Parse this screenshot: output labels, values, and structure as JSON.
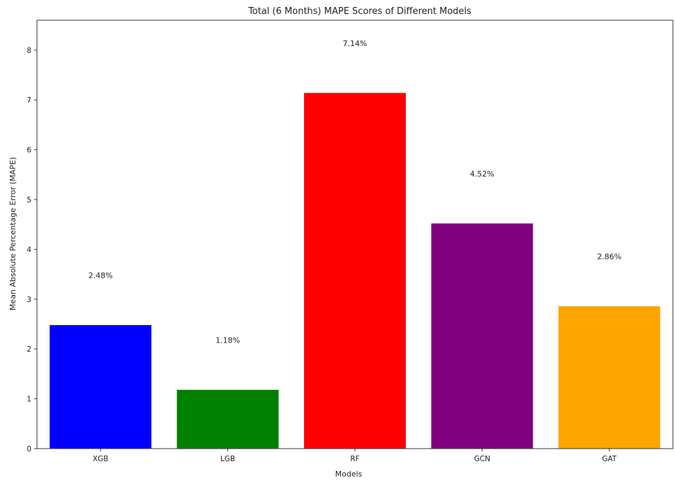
{
  "chart_data": {
    "type": "bar",
    "title": "Total (6 Months) MAPE Scores of Different Models",
    "xlabel": "Models",
    "ylabel": "Mean Absolute Percentage Error (MAPE)",
    "categories": [
      "XGB",
      "LGB",
      "RF",
      "GCN",
      "GAT"
    ],
    "values": [
      2.48,
      1.18,
      7.14,
      4.52,
      2.86
    ],
    "value_labels": [
      "2.48%",
      "1.18%",
      "7.14%",
      "4.52%",
      "2.86%"
    ],
    "colors": [
      "#0000ff",
      "#008000",
      "#ff0000",
      "#800080",
      "#ffa500"
    ],
    "ylim": [
      0,
      8.6
    ],
    "yticks": [
      0,
      1,
      2,
      3,
      4,
      5,
      6,
      7,
      8
    ],
    "grid": false
  }
}
